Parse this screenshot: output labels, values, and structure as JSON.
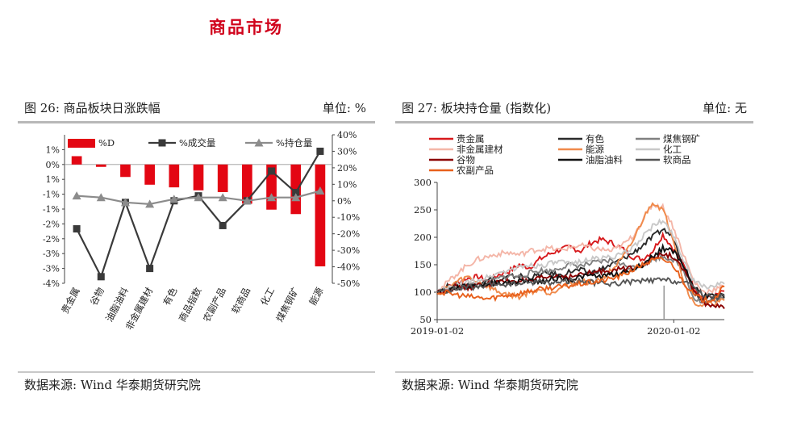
{
  "page": {
    "title": "商品市场"
  },
  "left_panel": {
    "title": "图 26: 商品板块日涨跌幅",
    "unit": "单位: %",
    "source": "数据来源: Wind 华泰期货研究院"
  },
  "right_panel": {
    "title": "图 27: 板块持仓量 (指数化)",
    "unit": "单位: 无",
    "source": "数据来源: Wind 华泰期货研究院"
  },
  "colors": {
    "title_red": "#d0021b",
    "bar_red": "#e30613",
    "volume_line": "#3a3a3a",
    "oi_line": "#8c8c8c"
  },
  "chart_data": [
    {
      "type": "bar",
      "title": "",
      "categories": [
        "贵金属",
        "谷物",
        "油脂油料",
        "非金属建材",
        "有色",
        "商品指数",
        "农副产品",
        "软商品",
        "化工",
        "煤焦钢矿",
        "能源"
      ],
      "left_axis": {
        "ylim": [
          -4,
          1
        ],
        "ticks": [
          "-4%",
          "-3%",
          "-3%",
          "-2%",
          "-2%",
          "-1%",
          "-1%",
          "1%",
          "0%",
          "1%"
        ],
        "tick_values": [
          -4,
          -3.5,
          -3,
          -2.5,
          -2,
          -1.5,
          -1,
          -0.5,
          0,
          0.5
        ]
      },
      "right_axis": {
        "ylim": [
          -50,
          40
        ],
        "ticks": [
          "-50%",
          "-40%",
          "-30%",
          "-20%",
          "-10%",
          "0%",
          "10%",
          "20%",
          "30%",
          "40%"
        ],
        "tick_values": [
          -50,
          -40,
          -30,
          -20,
          -10,
          0,
          10,
          20,
          30,
          40
        ]
      },
      "series": [
        {
          "name": "%D",
          "kind": "bar",
          "axis": "left",
          "values": [
            0.28,
            -0.08,
            -0.42,
            -0.68,
            -0.77,
            -0.87,
            -0.93,
            -1.32,
            -1.52,
            -1.67,
            -3.43
          ]
        },
        {
          "name": "%成交量",
          "kind": "line",
          "axis": "right",
          "values": [
            -17,
            -46,
            -1,
            -41,
            0,
            3,
            -15,
            0,
            18,
            5,
            30
          ]
        },
        {
          "name": "%持仓量",
          "kind": "line",
          "axis": "right",
          "values": [
            3,
            2,
            -1,
            -2,
            1,
            2,
            2,
            0,
            2,
            2,
            6
          ]
        }
      ],
      "legend": "top"
    },
    {
      "type": "line",
      "title": "",
      "x_range": [
        "2019-01-02",
        "2020-03-20"
      ],
      "x_ticks": [
        "2019-01-02",
        "2020-01-02"
      ],
      "ylim": [
        50,
        300
      ],
      "y_ticks": [
        50,
        100,
        150,
        200,
        250,
        300
      ],
      "legend": "top",
      "series": [
        {
          "name": "贵金属",
          "color": "#d7191c",
          "values": [
            100,
            108,
            118,
            125,
            128,
            120,
            132,
            138,
            150,
            145,
            160,
            170,
            178,
            182,
            175,
            190,
            196,
            190,
            180,
            165,
            160,
            175,
            205,
            180,
            150,
            110,
            88,
            92,
            102
          ]
        },
        {
          "name": "有色",
          "color": "#2b2b2b",
          "values": [
            100,
            110,
            115,
            112,
            118,
            125,
            120,
            128,
            130,
            126,
            132,
            135,
            130,
            138,
            140,
            135,
            142,
            150,
            160,
            170,
            185,
            200,
            215,
            200,
            150,
            100,
            85,
            90,
            95
          ]
        },
        {
          "name": "煤焦钢矿",
          "color": "#808080",
          "values": [
            100,
            105,
            108,
            112,
            115,
            118,
            125,
            130,
            128,
            135,
            140,
            138,
            145,
            150,
            148,
            152,
            155,
            158,
            150,
            145,
            150,
            160,
            165,
            160,
            140,
            90,
            80,
            85,
            88
          ]
        },
        {
          "name": "非金属建材",
          "color": "#f4b6a8",
          "values": [
            100,
            118,
            135,
            150,
            160,
            165,
            170,
            172,
            168,
            175,
            178,
            180,
            176,
            182,
            185,
            180,
            178,
            175,
            185,
            200,
            230,
            260,
            255,
            220,
            170,
            120,
            100,
            105,
            110
          ]
        },
        {
          "name": "能源",
          "color": "#f08a4b",
          "values": [
            100,
            108,
            120,
            128,
            118,
            110,
            100,
            95,
            92,
            100,
            105,
            98,
            110,
            115,
            120,
            118,
            125,
            140,
            160,
            190,
            230,
            265,
            250,
            200,
            120,
            80,
            75,
            80,
            85
          ]
        },
        {
          "name": "化工",
          "color": "#c8c8c8",
          "values": [
            100,
            106,
            112,
            118,
            122,
            128,
            135,
            140,
            145,
            150,
            148,
            152,
            155,
            150,
            158,
            160,
            162,
            165,
            168,
            180,
            200,
            220,
            230,
            205,
            160,
            120,
            110,
            112,
            115
          ]
        },
        {
          "name": "谷物",
          "color": "#8b0000",
          "values": [
            100,
            105,
            110,
            108,
            112,
            115,
            118,
            120,
            122,
            118,
            125,
            128,
            130,
            128,
            132,
            135,
            138,
            140,
            142,
            145,
            150,
            160,
            170,
            165,
            140,
            105,
            80,
            75,
            70
          ]
        },
        {
          "name": "油脂油料",
          "color": "#111111",
          "values": [
            100,
            104,
            108,
            110,
            112,
            115,
            118,
            116,
            120,
            122,
            118,
            124,
            126,
            122,
            128,
            130,
            128,
            132,
            135,
            140,
            150,
            165,
            180,
            175,
            150,
            110,
            95,
            92,
            90
          ]
        },
        {
          "name": "软商品",
          "color": "#555555",
          "values": [
            100,
            103,
            106,
            110,
            108,
            112,
            115,
            113,
            116,
            118,
            120,
            117,
            119,
            121,
            120,
            118,
            116,
            115,
            117,
            119,
            120,
            121,
            122,
            120,
            118,
            110,
            95,
            90,
            92
          ]
        },
        {
          "name": "农副产品",
          "color": "#e8601c",
          "values": [
            100,
            98,
            95,
            92,
            90,
            88,
            92,
            95,
            98,
            102,
            105,
            108,
            110,
            112,
            115,
            118,
            120,
            125,
            130,
            140,
            150,
            158,
            160,
            150,
            120,
            95,
            85,
            88,
            110
          ]
        }
      ]
    }
  ]
}
